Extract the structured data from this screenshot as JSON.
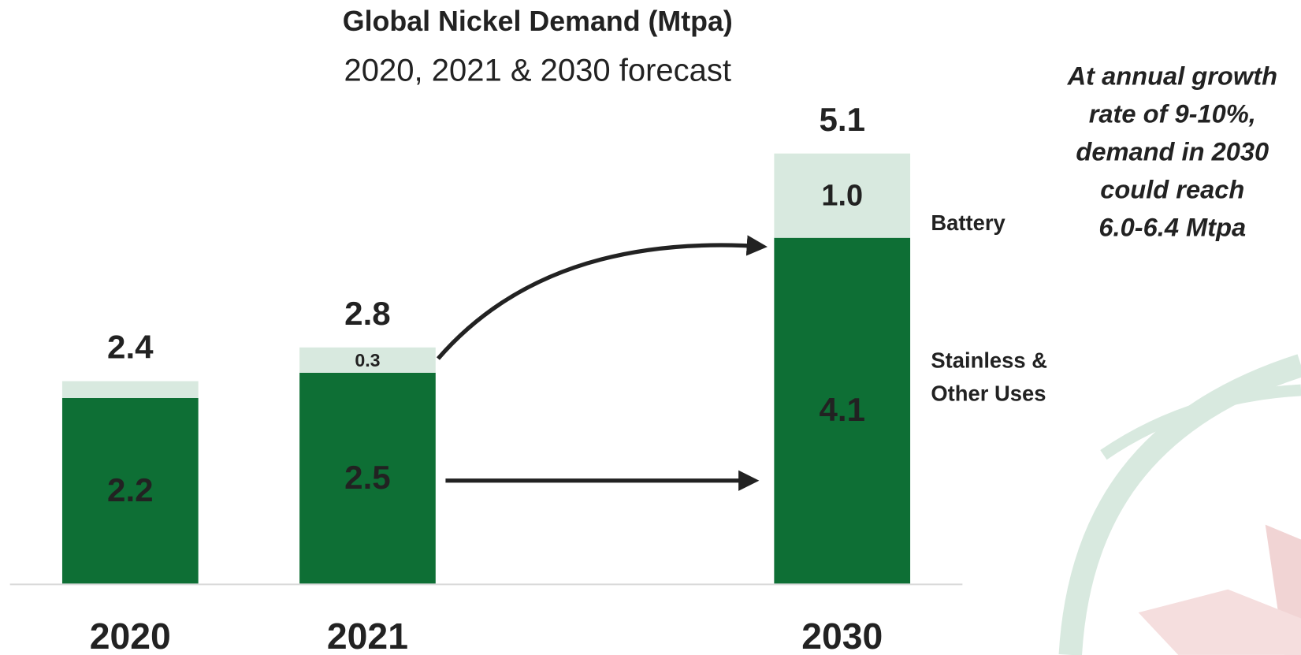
{
  "chart_data": {
    "type": "bar",
    "stacked": true,
    "title": "Global Nickel Demand (Mtpa)",
    "subtitle": "2020, 2021 & 2030 forecast",
    "categories": [
      "2020",
      "2021",
      null,
      "2030"
    ],
    "series": [
      {
        "name": "Stainless & Other Uses",
        "color": "#0e6f35",
        "values": [
          2.2,
          2.5,
          null,
          4.1
        ]
      },
      {
        "name": "Battery",
        "color": "#d8e9df",
        "values": [
          0.2,
          0.3,
          null,
          1.0
        ],
        "value_labels": [
          null,
          "0.3",
          null,
          "1.0"
        ]
      }
    ],
    "totals": [
      2.4,
      2.8,
      null,
      5.1
    ],
    "annotation": [
      "At annual growth",
      "rate of 9-10%,",
      "demand in 2030",
      "could reach",
      "6.0-6.4 Mtpa"
    ]
  }
}
